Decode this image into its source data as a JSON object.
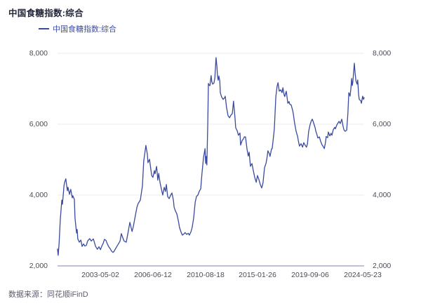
{
  "header": {
    "title": "中国食糖指数:综合"
  },
  "legend": {
    "label": "中国食糖指数:综合",
    "marker": "line-swatch"
  },
  "footer": {
    "source": "数据来源：同花顺iFinD"
  },
  "colors": {
    "line": "#3a4a9e",
    "legend_text": "#3e4da1",
    "title_text": "#23263a",
    "axis_text": "#4b4b55",
    "grid": "#ebebf2",
    "baseline": "#a8aec6",
    "background": "#ffffff"
  },
  "chart_data": {
    "type": "line",
    "title": "中国食糖指数:综合",
    "series_name": "中国食糖指数:综合",
    "xlabel": "",
    "ylabel": "",
    "ylim": [
      2000,
      8000
    ],
    "grid": true,
    "legend_position": "top-left",
    "y_ticks": [
      {
        "v": 8000,
        "label": "8,000"
      },
      {
        "v": 6000,
        "label": "6,000"
      },
      {
        "v": 4000,
        "label": "4,000"
      },
      {
        "v": 2000,
        "label": "2,000"
      }
    ],
    "x_ticks": [
      {
        "pct": 14.0,
        "label": "2003-05-02"
      },
      {
        "pct": 31.1,
        "label": "2006-06-12"
      },
      {
        "pct": 48.3,
        "label": "2010-08-18"
      },
      {
        "pct": 65.2,
        "label": "2015-01-26"
      },
      {
        "pct": 82.4,
        "label": "2019-09-06"
      },
      {
        "pct": 99.5,
        "label": "2024-05-23"
      }
    ],
    "points": [
      [
        0.0,
        2480
      ],
      [
        0.2,
        2300
      ],
      [
        0.5,
        2620
      ],
      [
        0.9,
        3300
      ],
      [
        1.4,
        3860
      ],
      [
        1.6,
        3740
      ],
      [
        2.1,
        4260
      ],
      [
        2.3,
        4360
      ],
      [
        2.7,
        4460
      ],
      [
        3.2,
        4120
      ],
      [
        3.4,
        4220
      ],
      [
        3.9,
        4020
      ],
      [
        4.3,
        4160
      ],
      [
        4.8,
        3920
      ],
      [
        5.0,
        3980
      ],
      [
        5.5,
        3880
      ],
      [
        5.7,
        3350
      ],
      [
        6.2,
        2930
      ],
      [
        6.4,
        3030
      ],
      [
        6.6,
        2770
      ],
      [
        7.1,
        2670
      ],
      [
        7.6,
        2730
      ],
      [
        8.0,
        2550
      ],
      [
        8.5,
        2620
      ],
      [
        8.9,
        2560
      ],
      [
        9.4,
        2580
      ],
      [
        9.8,
        2700
      ],
      [
        10.5,
        2770
      ],
      [
        11.0,
        2700
      ],
      [
        11.7,
        2760
      ],
      [
        12.4,
        2550
      ],
      [
        13.0,
        2470
      ],
      [
        13.5,
        2540
      ],
      [
        14.0,
        2460
      ],
      [
        14.4,
        2550
      ],
      [
        14.9,
        2640
      ],
      [
        15.3,
        2750
      ],
      [
        15.8,
        2720
      ],
      [
        16.2,
        2630
      ],
      [
        16.7,
        2540
      ],
      [
        17.2,
        2480
      ],
      [
        17.6,
        2420
      ],
      [
        18.1,
        2380
      ],
      [
        18.5,
        2420
      ],
      [
        19.0,
        2500
      ],
      [
        19.5,
        2570
      ],
      [
        19.9,
        2630
      ],
      [
        20.4,
        2700
      ],
      [
        20.8,
        2910
      ],
      [
        21.3,
        2790
      ],
      [
        21.7,
        2700
      ],
      [
        22.4,
        2670
      ],
      [
        22.9,
        2900
      ],
      [
        23.6,
        3230
      ],
      [
        24.3,
        2970
      ],
      [
        24.7,
        3100
      ],
      [
        25.4,
        3430
      ],
      [
        25.9,
        3660
      ],
      [
        26.3,
        3760
      ],
      [
        27.0,
        3860
      ],
      [
        27.7,
        4260
      ],
      [
        28.1,
        4950
      ],
      [
        28.8,
        5400
      ],
      [
        29.3,
        5150
      ],
      [
        29.5,
        4910
      ],
      [
        30.0,
        5010
      ],
      [
        30.4,
        4750
      ],
      [
        30.7,
        4550
      ],
      [
        31.1,
        4500
      ],
      [
        31.6,
        4690
      ],
      [
        31.8,
        4600
      ],
      [
        32.3,
        4810
      ],
      [
        32.7,
        4420
      ],
      [
        33.0,
        4610
      ],
      [
        33.4,
        4360
      ],
      [
        33.9,
        4160
      ],
      [
        34.3,
        4000
      ],
      [
        34.8,
        4220
      ],
      [
        35.2,
        4100
      ],
      [
        35.5,
        4300
      ],
      [
        35.9,
        3960
      ],
      [
        36.4,
        3900
      ],
      [
        36.8,
        3980
      ],
      [
        37.3,
        4060
      ],
      [
        37.8,
        3850
      ],
      [
        38.0,
        3660
      ],
      [
        38.4,
        3560
      ],
      [
        38.9,
        3470
      ],
      [
        39.4,
        3270
      ],
      [
        39.8,
        3080
      ],
      [
        40.3,
        2950
      ],
      [
        40.7,
        2870
      ],
      [
        41.2,
        2900
      ],
      [
        41.6,
        2940
      ],
      [
        42.1,
        2890
      ],
      [
        42.6,
        2920
      ],
      [
        43.0,
        2870
      ],
      [
        43.5,
        2960
      ],
      [
        43.9,
        3080
      ],
      [
        44.4,
        3350
      ],
      [
        44.9,
        3800
      ],
      [
        45.3,
        3960
      ],
      [
        45.8,
        4000
      ],
      [
        46.2,
        4100
      ],
      [
        46.7,
        4180
      ],
      [
        47.1,
        4600
      ],
      [
        47.6,
        5050
      ],
      [
        48.1,
        5310
      ],
      [
        48.3,
        4890
      ],
      [
        48.5,
        5090
      ],
      [
        48.7,
        4850
      ],
      [
        49.0,
        6000
      ],
      [
        49.2,
        7150
      ],
      [
        49.4,
        7100
      ],
      [
        49.7,
        7090
      ],
      [
        49.9,
        7250
      ],
      [
        50.1,
        7370
      ],
      [
        50.3,
        7200
      ],
      [
        50.6,
        7130
      ],
      [
        51.0,
        7160
      ],
      [
        51.3,
        7300
      ],
      [
        51.7,
        7880
      ],
      [
        52.0,
        7620
      ],
      [
        52.2,
        7330
      ],
      [
        52.4,
        7240
      ],
      [
        52.6,
        7360
      ],
      [
        52.9,
        7230
      ],
      [
        53.1,
        6890
      ],
      [
        53.5,
        6770
      ],
      [
        54.0,
        6700
      ],
      [
        54.5,
        6750
      ],
      [
        54.7,
        6790
      ],
      [
        55.1,
        6480
      ],
      [
        55.6,
        6240
      ],
      [
        56.1,
        6180
      ],
      [
        56.5,
        6250
      ],
      [
        57.0,
        6300
      ],
      [
        57.4,
        6650
      ],
      [
        57.9,
        6160
      ],
      [
        58.1,
        5900
      ],
      [
        58.6,
        5810
      ],
      [
        59.0,
        5690
      ],
      [
        59.5,
        5750
      ],
      [
        59.7,
        5410
      ],
      [
        60.2,
        5540
      ],
      [
        60.6,
        5580
      ],
      [
        60.9,
        5640
      ],
      [
        61.3,
        5640
      ],
      [
        61.8,
        5290
      ],
      [
        62.2,
        5100
      ],
      [
        62.5,
        5210
      ],
      [
        62.9,
        4810
      ],
      [
        63.4,
        4890
      ],
      [
        63.8,
        4710
      ],
      [
        64.3,
        4500
      ],
      [
        64.8,
        4360
      ],
      [
        65.2,
        4550
      ],
      [
        65.7,
        4430
      ],
      [
        66.1,
        4300
      ],
      [
        66.6,
        4200
      ],
      [
        67.0,
        4340
      ],
      [
        67.5,
        4770
      ],
      [
        68.0,
        4900
      ],
      [
        68.4,
        5100
      ],
      [
        68.6,
        5250
      ],
      [
        69.1,
        5160
      ],
      [
        69.3,
        5090
      ],
      [
        69.8,
        5300
      ],
      [
        70.0,
        5310
      ],
      [
        70.5,
        5700
      ],
      [
        70.7,
        5880
      ],
      [
        71.2,
        6770
      ],
      [
        71.6,
        7070
      ],
      [
        71.9,
        7170
      ],
      [
        72.3,
        6930
      ],
      [
        72.8,
        6970
      ],
      [
        73.2,
        6890
      ],
      [
        73.5,
        7030
      ],
      [
        73.9,
        6830
      ],
      [
        74.1,
        6780
      ],
      [
        74.6,
        6930
      ],
      [
        75.1,
        6590
      ],
      [
        75.5,
        6640
      ],
      [
        75.7,
        6570
      ],
      [
        76.2,
        6540
      ],
      [
        76.7,
        6380
      ],
      [
        76.9,
        6280
      ],
      [
        77.3,
        6040
      ],
      [
        77.8,
        5800
      ],
      [
        78.3,
        5650
      ],
      [
        78.5,
        5550
      ],
      [
        78.9,
        5380
      ],
      [
        79.4,
        5450
      ],
      [
        79.9,
        5350
      ],
      [
        80.3,
        5480
      ],
      [
        80.8,
        5400
      ],
      [
        81.2,
        5350
      ],
      [
        81.5,
        5450
      ],
      [
        81.9,
        5800
      ],
      [
        82.4,
        6000
      ],
      [
        82.8,
        6100
      ],
      [
        83.1,
        6140
      ],
      [
        83.5,
        6040
      ],
      [
        84.0,
        5900
      ],
      [
        84.2,
        5810
      ],
      [
        84.7,
        5680
      ],
      [
        84.9,
        5610
      ],
      [
        85.4,
        5640
      ],
      [
        85.8,
        5520
      ],
      [
        86.3,
        5410
      ],
      [
        86.5,
        5390
      ],
      [
        87.0,
        5310
      ],
      [
        87.4,
        5490
      ],
      [
        87.6,
        5650
      ],
      [
        88.1,
        5620
      ],
      [
        88.3,
        5780
      ],
      [
        88.8,
        5670
      ],
      [
        89.2,
        5740
      ],
      [
        89.5,
        5690
      ],
      [
        89.9,
        5840
      ],
      [
        90.4,
        5910
      ],
      [
        90.6,
        5870
      ],
      [
        91.1,
        5980
      ],
      [
        91.5,
        6040
      ],
      [
        91.8,
        6080
      ],
      [
        92.2,
        6020
      ],
      [
        92.7,
        6140
      ],
      [
        93.1,
        5950
      ],
      [
        93.4,
        5840
      ],
      [
        93.8,
        5800
      ],
      [
        94.3,
        5830
      ],
      [
        94.7,
        6300
      ],
      [
        95.0,
        6890
      ],
      [
        95.2,
        6850
      ],
      [
        95.4,
        6790
      ],
      [
        95.7,
        7030
      ],
      [
        95.9,
        7290
      ],
      [
        96.1,
        7090
      ],
      [
        96.3,
        7180
      ],
      [
        96.8,
        7720
      ],
      [
        97.0,
        7490
      ],
      [
        97.3,
        7230
      ],
      [
        97.7,
        7130
      ],
      [
        97.9,
        7250
      ],
      [
        98.2,
        6830
      ],
      [
        98.4,
        6700
      ],
      [
        98.9,
        6660
      ],
      [
        99.1,
        6590
      ],
      [
        99.5,
        6790
      ],
      [
        99.8,
        6700
      ],
      [
        100.0,
        6750
      ]
    ]
  },
  "layout_note": ""
}
